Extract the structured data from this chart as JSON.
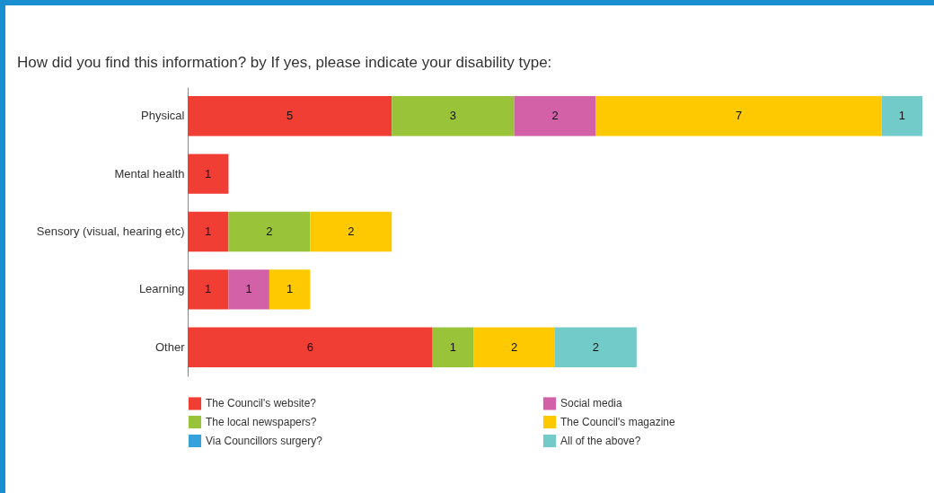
{
  "chart_data": {
    "type": "bar",
    "orientation": "horizontal",
    "stacked": true,
    "data_labels": true,
    "legend": "bottom",
    "grid": false,
    "title": "How did you find this information? by If yes, please indicate your disability type:",
    "categories": [
      "Physical",
      "Mental health",
      "Sensory (visual, hearing etc)",
      "Learning",
      "Other"
    ],
    "series": [
      {
        "name": "The Council's website?",
        "color": "#f03e35",
        "values": [
          5,
          1,
          1,
          1,
          6
        ]
      },
      {
        "name": "The local newspapers?",
        "color": "#99c43a",
        "values": [
          3,
          null,
          2,
          null,
          1
        ]
      },
      {
        "name": "Via Councillors surgery?",
        "color": "#35a2dc",
        "values": [
          null,
          null,
          null,
          null,
          null
        ]
      },
      {
        "name": "Social media",
        "color": "#d361a8",
        "values": [
          2,
          null,
          null,
          1,
          null
        ]
      },
      {
        "name": "The Council's magazine",
        "color": "#ffc900",
        "values": [
          7,
          null,
          2,
          1,
          2
        ]
      },
      {
        "name": "All of the above?",
        "color": "#72cbc9",
        "values": [
          1,
          null,
          null,
          null,
          2
        ]
      }
    ]
  }
}
